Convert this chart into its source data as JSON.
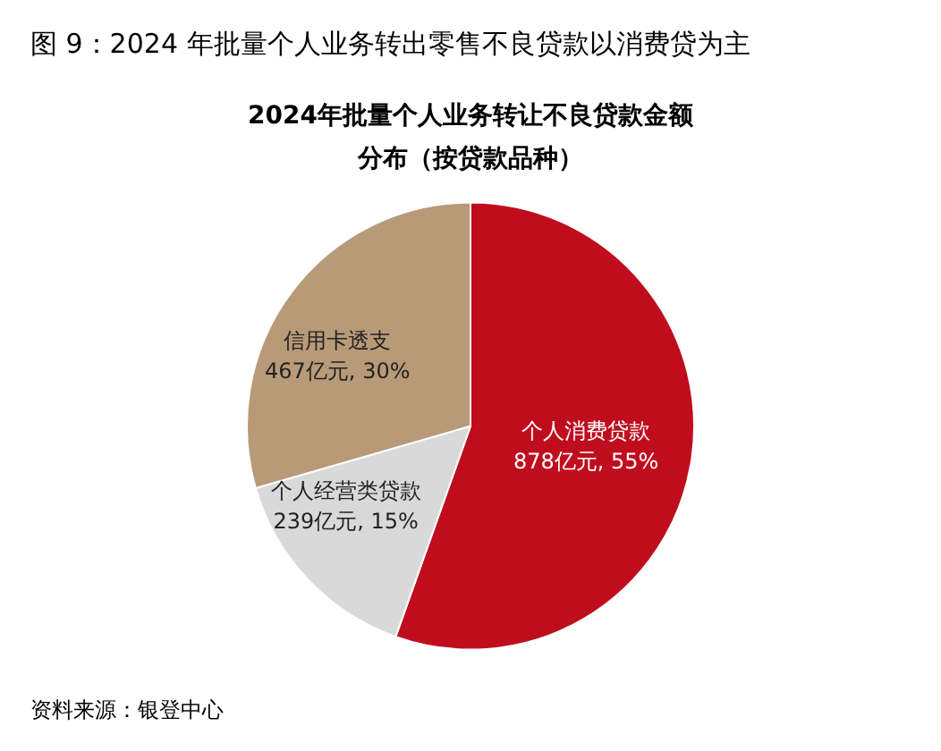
{
  "chart_data": {
    "type": "pie",
    "title": "图 9：2024 年批量个人业务转出零售不良贷款以消费贷为主",
    "subtitle": "2024年批量个人业务转让不良贷款金额分布（按贷款品种）",
    "categories": [
      "个人消费贷款",
      "个人经营类贷款",
      "信用卡透支"
    ],
    "values": [
      878,
      239,
      467
    ],
    "colors": [
      "#c00d1e",
      "#d9d9d9",
      "#b89a78"
    ],
    "value_labels": [
      "878亿元, 55%",
      "239亿元, 15%",
      "467亿元, 30%"
    ],
    "annotations": [
      "资料来源：银登中心"
    ]
  }
}
